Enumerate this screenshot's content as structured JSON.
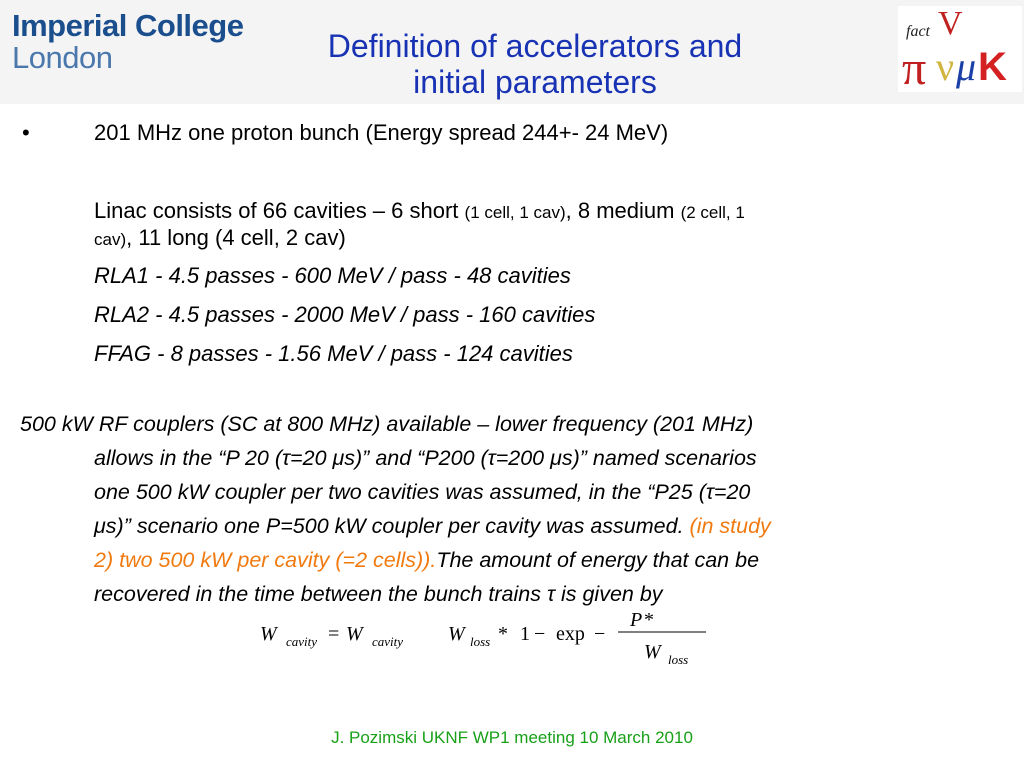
{
  "header": {
    "logo_line1": "Imperial College",
    "logo_line2": "London",
    "title_line1": "Definition of accelerators and",
    "title_line2": "initial parameters",
    "badge": {
      "fact": "fact",
      "letters": "π ν μ K"
    }
  },
  "bullet": {
    "marker": "•",
    "text": "201 MHz one proton bunch (Energy spread 244+- 24 MeV)"
  },
  "linac": {
    "a": "Linac consists of 66 cavities – 6 short ",
    "b": "(1 cell, 1 cav)",
    "c": ", 8 medium ",
    "d": "(2 cell, 1",
    "e": "cav)",
    "f": ", 11 long (4 cell, 2 cav)"
  },
  "rla_lines": [
    "RLA1  - 4.5 passes - 600 MeV / pass - 48 cavities",
    "RLA2  - 4.5 passes - 2000 MeV / pass - 160 cavities",
    "FFAG  - 8 passes - 1.56 MeV / pass - 124 cavities"
  ],
  "paragraph": {
    "l1": "500 kW RF couplers (SC at 800 MHz) available – lower frequency (201 MHz)",
    "l2": "allows in the “P 20 (τ=20 μs)” and “P200 (τ=200 μs)” named scenarios",
    "l3": "one 500 kW coupler per two cavities was assumed, in the “P25 (τ=20",
    "l4a": "μs)” scenario one P=500 kW coupler per cavity was assumed. ",
    "l4b": "(in study",
    "l5a": "2) two 500 kW per cavity (=2 cells)).",
    "l5b": "The amount of energy that can be",
    "l6": "recovered in the time between the bunch trains τ is given by"
  },
  "equation": {
    "W": "W",
    "cavity": "cavity",
    "eq": "=",
    "loss": "loss",
    "star": "*",
    "one": "1",
    "minus": "−",
    "exp": "exp",
    "P": "P"
  },
  "footer": "J. Pozimski UKNF WP1 meeting  10 March 2010",
  "colors": {
    "title": "#1832b4",
    "logo": "#1a4e8c",
    "highlight": "#f07a10",
    "footer": "#18a018"
  }
}
